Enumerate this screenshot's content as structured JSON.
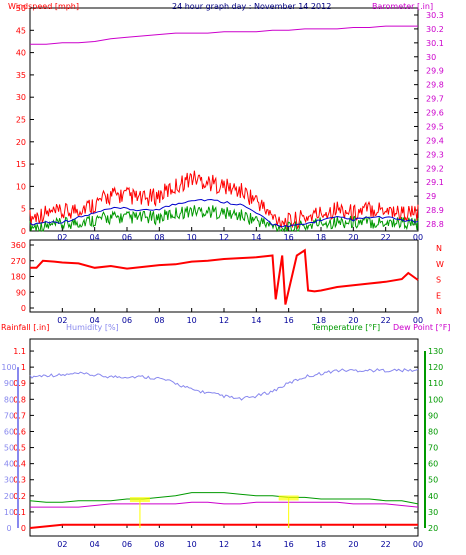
{
  "header": {
    "windspeed_label": "Windspeed [mph]",
    "title": "24 hour graph day : November 14 2012",
    "barometer_label": "Barometer [.in]"
  },
  "lower_header": {
    "rainfall_label": "Rainfall [.in]",
    "humidity_label": "Humidity [%]",
    "temperature_label": "Temperature [°F]",
    "dewpoint_label": "Dew Point [°F]"
  },
  "colors": {
    "windspeed": "#ff0000",
    "windgust": "#ff0000",
    "windavg": "#009900",
    "title": "#000080",
    "barometer": "#cc00cc",
    "direction": "#ff0000",
    "rainfall": "#ff0000",
    "humidity": "#8888ee",
    "temperature": "#009900",
    "dewpoint": "#cc00cc",
    "axis_x": "#000099",
    "marker": "#ffff00"
  },
  "x_ticks": [
    "02",
    "04",
    "06",
    "08",
    "10",
    "12",
    "14",
    "16",
    "18",
    "20",
    "22",
    "00"
  ],
  "dir_labels": [
    "N",
    "W",
    "S",
    "E",
    "N"
  ],
  "chart_data": [
    {
      "type": "line",
      "name_ref": "wind_baro",
      "x_hours": [
        0,
        1,
        2,
        3,
        4,
        5,
        6,
        7,
        8,
        9,
        10,
        11,
        12,
        13,
        14,
        15,
        16,
        17,
        18,
        19,
        20,
        21,
        22,
        23,
        24
      ],
      "ylim": [
        0,
        50
      ],
      "yticks": [
        0,
        5,
        10,
        15,
        20,
        25,
        30,
        35,
        40,
        45,
        50
      ],
      "y2lim": [
        28.75,
        30.35
      ],
      "y2ticks": [
        "28.8",
        "28.9",
        "29",
        "29.1",
        "29.2",
        "29.3",
        "29.4",
        "29.5",
        "29.6",
        "29.7",
        "29.8",
        "29.9",
        "30",
        "30.1",
        "30.2",
        "30.3"
      ],
      "series": [
        {
          "name": "gust",
          "values": [
            3,
            4,
            4,
            5,
            6,
            8,
            8,
            7,
            8,
            10,
            12,
            11,
            10,
            9,
            7,
            3,
            2,
            3,
            4,
            5,
            4,
            5,
            5,
            4,
            4
          ]
        },
        {
          "name": "speed",
          "values": [
            1.5,
            2,
            2,
            3,
            4,
            5,
            5,
            4.5,
            5,
            6,
            7,
            7,
            6.5,
            6,
            4,
            1.5,
            1,
            1.5,
            2.5,
            3,
            2.5,
            3,
            3,
            2.5,
            2
          ]
        },
        {
          "name": "average",
          "values": [
            1,
            1,
            1.5,
            2,
            2.5,
            3,
            3,
            3,
            3,
            4,
            4.5,
            4.5,
            4,
            3.5,
            2.5,
            1,
            0.5,
            1,
            2,
            2,
            2,
            2,
            2,
            2,
            1.5
          ]
        },
        {
          "name": "barometer",
          "values": [
            30.09,
            30.09,
            30.1,
            30.1,
            30.11,
            30.13,
            30.14,
            30.15,
            30.16,
            30.17,
            30.17,
            30.17,
            30.18,
            30.18,
            30.18,
            30.19,
            30.19,
            30.2,
            30.2,
            30.2,
            30.21,
            30.21,
            30.22,
            30.22,
            30.22
          ]
        }
      ]
    },
    {
      "type": "line",
      "name_ref": "direction",
      "ylim": [
        0,
        360
      ],
      "yticks": [
        0,
        90,
        180,
        270,
        360
      ],
      "x_hours": [
        0,
        0.4,
        0.8,
        1.5,
        2,
        3,
        4,
        5,
        6,
        7,
        8,
        9,
        10,
        11,
        12,
        13,
        14,
        15.0,
        15.2,
        15.6,
        15.8,
        16.5,
        17.0,
        17.2,
        17.6,
        18,
        19,
        20,
        21,
        22,
        23,
        23.4,
        24
      ],
      "values": [
        230,
        230,
        270,
        265,
        260,
        255,
        230,
        240,
        225,
        235,
        245,
        250,
        265,
        270,
        280,
        285,
        290,
        300,
        50,
        300,
        20,
        300,
        330,
        100,
        95,
        100,
        120,
        130,
        140,
        150,
        165,
        200,
        160
      ]
    },
    {
      "type": "line",
      "name_ref": "rain_humidity_temp",
      "ylim": [
        0,
        1.15
      ],
      "yticks": [
        "0",
        "0.1",
        "0.2",
        "0.3",
        "0.4",
        "0.5",
        "0.6",
        "0.7",
        "0.8",
        "0.9",
        "1",
        "1.1"
      ],
      "hum_ticks": [
        0,
        10,
        20,
        30,
        40,
        50,
        60,
        70,
        80,
        90,
        100
      ],
      "y2lim": [
        20,
        135
      ],
      "y2ticks": [
        20,
        30,
        40,
        50,
        60,
        70,
        80,
        90,
        100,
        110,
        120,
        130
      ],
      "x_hours": [
        0,
        1,
        2,
        3,
        4,
        5,
        6,
        7,
        8,
        9,
        10,
        11,
        12,
        13,
        14,
        15,
        16,
        17,
        18,
        19,
        20,
        21,
        22,
        23,
        24
      ],
      "series": [
        {
          "name": "rainfall",
          "values": [
            0,
            0.01,
            0.02,
            0.02,
            0.02,
            0.02,
            0.02,
            0.02,
            0.02,
            0.02,
            0.02,
            0.02,
            0.02,
            0.02,
            0.02,
            0.02,
            0.02,
            0.02,
            0.02,
            0.02,
            0.02,
            0.02,
            0.02,
            0.02,
            0.02
          ]
        },
        {
          "name": "humidity",
          "values": [
            94,
            95,
            95,
            96,
            95,
            94,
            94,
            94,
            93,
            90,
            86,
            84,
            82,
            80,
            82,
            85,
            90,
            94,
            96,
            98,
            98,
            98,
            98,
            98,
            98
          ]
        },
        {
          "name": "temperature",
          "values": [
            37,
            36,
            36,
            37,
            37,
            37,
            38,
            38,
            39,
            40,
            42,
            42,
            42,
            41,
            40,
            40,
            39,
            39,
            38,
            38,
            38,
            38,
            37,
            37,
            35
          ]
        },
        {
          "name": "dewpoint",
          "values": [
            33,
            33,
            33,
            33,
            34,
            35,
            35,
            35,
            35,
            35,
            36,
            36,
            35,
            35,
            36,
            36,
            36,
            36,
            36,
            36,
            35,
            35,
            35,
            34,
            33
          ]
        }
      ],
      "markers": [
        {
          "x": 6.8,
          "value": 38
        },
        {
          "x": 16.0,
          "value": 39
        }
      ]
    }
  ]
}
